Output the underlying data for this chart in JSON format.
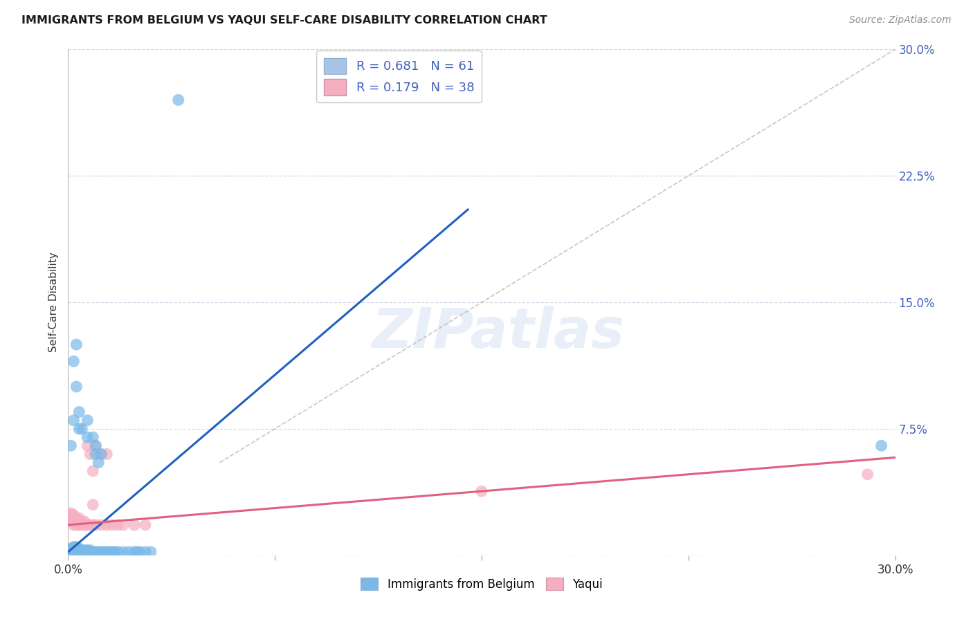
{
  "title": "IMMIGRANTS FROM BELGIUM VS YAQUI SELF-CARE DISABILITY CORRELATION CHART",
  "source": "Source: ZipAtlas.com",
  "ylabel": "Self-Care Disability",
  "xlim": [
    0.0,
    0.3
  ],
  "ylim": [
    0.0,
    0.3
  ],
  "yticks": [
    0.0,
    0.075,
    0.15,
    0.225,
    0.3
  ],
  "xticks": [
    0.0,
    0.075,
    0.15,
    0.225,
    0.3
  ],
  "xtick_labels": [
    "0.0%",
    "",
    "",
    "",
    "30.0%"
  ],
  "legend_entries": [
    {
      "label": "R = 0.681   N = 61",
      "facecolor": "#aac4e8"
    },
    {
      "label": "R = 0.179   N = 38",
      "facecolor": "#f5afc0"
    }
  ],
  "blue_scatter_color": "#7ab8e8",
  "pink_scatter_color": "#f5afc0",
  "blue_line_color": "#2060c0",
  "pink_line_color": "#e06080",
  "diag_line_color": "#b8b8b8",
  "watermark": "ZIPatlas",
  "background_color": "#ffffff",
  "grid_color": "#d0d8e8",
  "title_color": "#1a1a1a",
  "axis_label_color": "#4060c0",
  "source_color": "#909090",
  "blue_line_x": [
    0.0,
    0.145
  ],
  "blue_line_y": [
    0.002,
    0.205
  ],
  "pink_line_x": [
    0.0,
    0.3
  ],
  "pink_line_y": [
    0.018,
    0.058
  ],
  "diag_line_x": [
    0.055,
    0.3
  ],
  "diag_line_y": [
    0.055,
    0.3
  ],
  "blue_scatter": [
    [
      0.001,
      0.001
    ],
    [
      0.001,
      0.002
    ],
    [
      0.001,
      0.003
    ],
    [
      0.001,
      0.004
    ],
    [
      0.002,
      0.001
    ],
    [
      0.002,
      0.002
    ],
    [
      0.002,
      0.003
    ],
    [
      0.002,
      0.004
    ],
    [
      0.002,
      0.005
    ],
    [
      0.003,
      0.001
    ],
    [
      0.003,
      0.002
    ],
    [
      0.003,
      0.003
    ],
    [
      0.003,
      0.004
    ],
    [
      0.003,
      0.005
    ],
    [
      0.004,
      0.001
    ],
    [
      0.004,
      0.002
    ],
    [
      0.004,
      0.003
    ],
    [
      0.004,
      0.004
    ],
    [
      0.005,
      0.001
    ],
    [
      0.005,
      0.002
    ],
    [
      0.005,
      0.003
    ],
    [
      0.006,
      0.002
    ],
    [
      0.006,
      0.003
    ],
    [
      0.007,
      0.002
    ],
    [
      0.007,
      0.003
    ],
    [
      0.008,
      0.002
    ],
    [
      0.008,
      0.003
    ],
    [
      0.009,
      0.002
    ],
    [
      0.01,
      0.002
    ],
    [
      0.011,
      0.002
    ],
    [
      0.012,
      0.002
    ],
    [
      0.013,
      0.002
    ],
    [
      0.014,
      0.002
    ],
    [
      0.015,
      0.002
    ],
    [
      0.016,
      0.002
    ],
    [
      0.017,
      0.002
    ],
    [
      0.018,
      0.002
    ],
    [
      0.02,
      0.002
    ],
    [
      0.022,
      0.002
    ],
    [
      0.024,
      0.002
    ],
    [
      0.025,
      0.002
    ],
    [
      0.026,
      0.002
    ],
    [
      0.028,
      0.002
    ],
    [
      0.03,
      0.002
    ],
    [
      0.001,
      0.065
    ],
    [
      0.002,
      0.08
    ],
    [
      0.002,
      0.115
    ],
    [
      0.003,
      0.1
    ],
    [
      0.003,
      0.125
    ],
    [
      0.004,
      0.075
    ],
    [
      0.004,
      0.085
    ],
    [
      0.005,
      0.075
    ],
    [
      0.007,
      0.07
    ],
    [
      0.007,
      0.08
    ],
    [
      0.009,
      0.07
    ],
    [
      0.01,
      0.06
    ],
    [
      0.01,
      0.065
    ],
    [
      0.011,
      0.055
    ],
    [
      0.012,
      0.06
    ],
    [
      0.04,
      0.27
    ],
    [
      0.295,
      0.065
    ]
  ],
  "pink_scatter": [
    [
      0.001,
      0.02
    ],
    [
      0.001,
      0.022
    ],
    [
      0.001,
      0.024
    ],
    [
      0.001,
      0.025
    ],
    [
      0.002,
      0.018
    ],
    [
      0.002,
      0.02
    ],
    [
      0.002,
      0.022
    ],
    [
      0.002,
      0.024
    ],
    [
      0.003,
      0.018
    ],
    [
      0.003,
      0.02
    ],
    [
      0.003,
      0.022
    ],
    [
      0.004,
      0.018
    ],
    [
      0.004,
      0.02
    ],
    [
      0.004,
      0.022
    ],
    [
      0.005,
      0.018
    ],
    [
      0.005,
      0.02
    ],
    [
      0.006,
      0.018
    ],
    [
      0.006,
      0.02
    ],
    [
      0.007,
      0.018
    ],
    [
      0.007,
      0.065
    ],
    [
      0.008,
      0.018
    ],
    [
      0.008,
      0.06
    ],
    [
      0.009,
      0.018
    ],
    [
      0.009,
      0.05
    ],
    [
      0.01,
      0.018
    ],
    [
      0.01,
      0.065
    ],
    [
      0.012,
      0.018
    ],
    [
      0.012,
      0.06
    ],
    [
      0.014,
      0.018
    ],
    [
      0.014,
      0.06
    ],
    [
      0.016,
      0.018
    ],
    [
      0.018,
      0.018
    ],
    [
      0.02,
      0.018
    ],
    [
      0.024,
      0.018
    ],
    [
      0.028,
      0.018
    ],
    [
      0.15,
      0.038
    ],
    [
      0.29,
      0.048
    ],
    [
      0.009,
      0.03
    ]
  ]
}
